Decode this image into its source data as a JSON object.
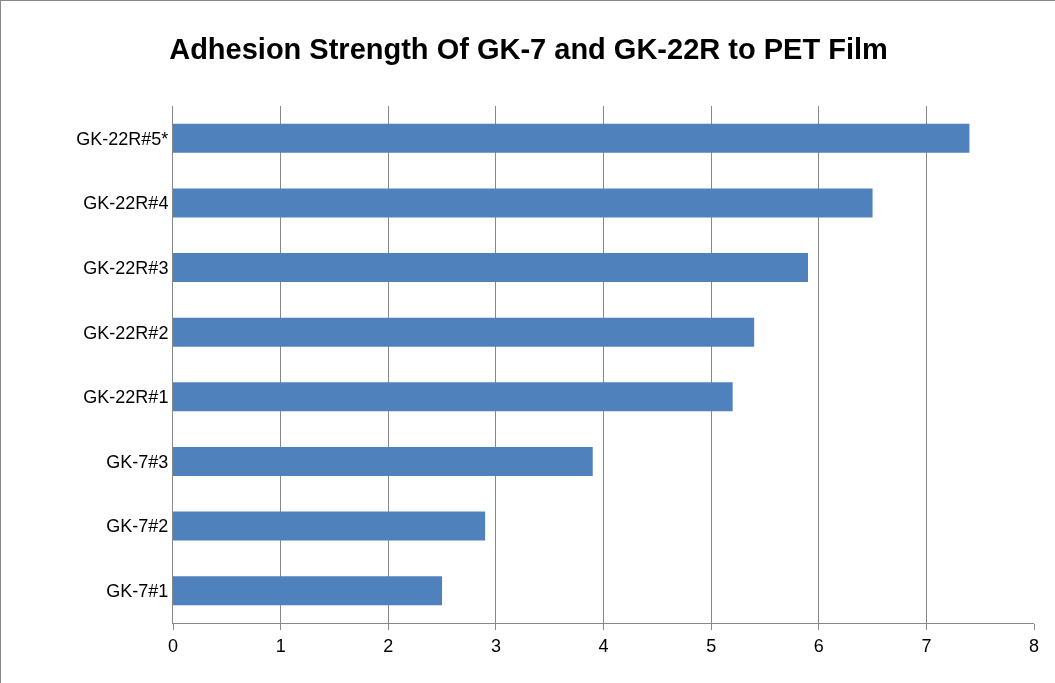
{
  "chart_data": {
    "type": "bar",
    "orientation": "horizontal",
    "title": "Adhesion Strength Of GK-7 and GK-22R to PET Film",
    "categories": [
      "GK-22R#5*",
      "GK-22R#4",
      "GK-22R#3",
      "GK-22R#2",
      "GK-22R#1",
      "GK-7#3",
      "GK-7#2",
      "GK-7#1"
    ],
    "values": [
      7.4,
      6.5,
      5.9,
      5.4,
      5.2,
      3.9,
      2.9,
      2.5
    ],
    "color": "#4f81bd",
    "xlim": [
      0,
      8
    ],
    "xticks": [
      0,
      1,
      2,
      3,
      4,
      5,
      6,
      7,
      8
    ],
    "grid": "x",
    "legend": false
  }
}
